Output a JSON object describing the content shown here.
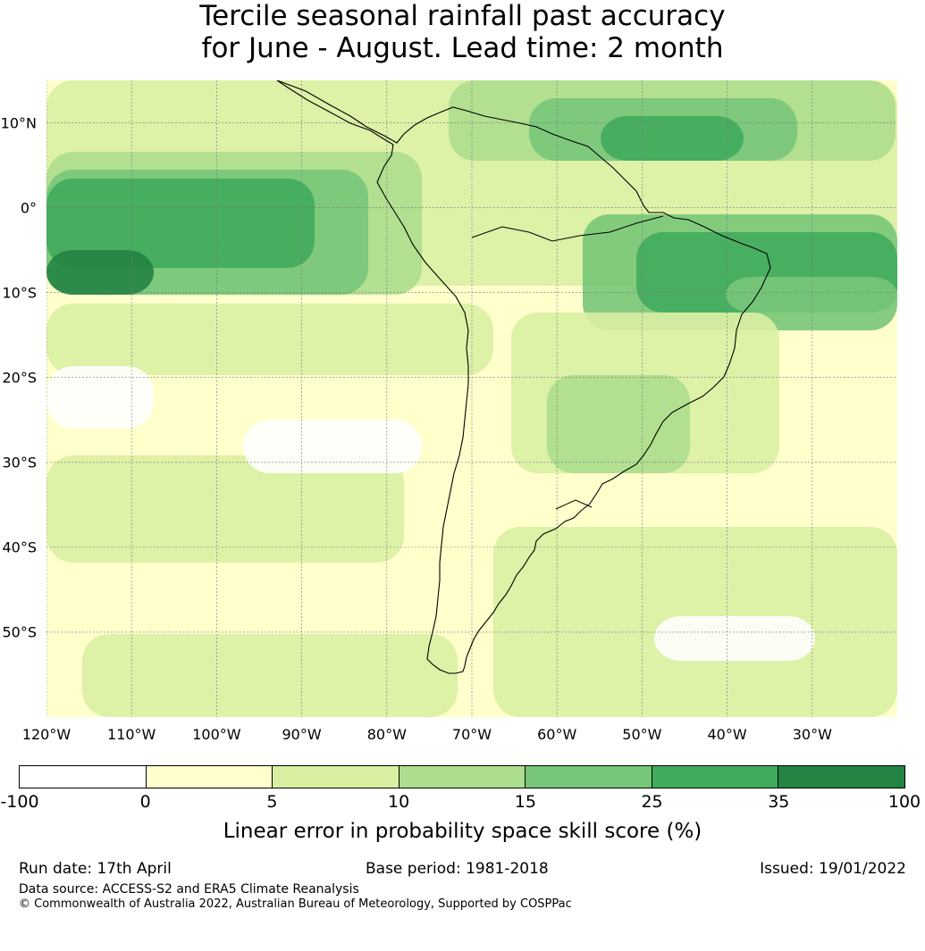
{
  "title": {
    "line1": "Tercile seasonal rainfall past accuracy",
    "line2": "for June - August. Lead time: 2 month"
  },
  "map": {
    "region": "South America",
    "lat_labels": [
      "10°N",
      "0°",
      "10°S",
      "20°S",
      "30°S",
      "40°S",
      "50°S"
    ],
    "lon_labels": [
      "120°W",
      "110°W",
      "100°W",
      "90°W",
      "80°W",
      "70°W",
      "60°W",
      "50°W",
      "40°W",
      "30°W"
    ],
    "lat_range": [
      -60,
      15
    ],
    "lon_range": [
      -120,
      -20
    ],
    "gridlines": true
  },
  "legend": {
    "ticks": [
      "-100",
      "0",
      "5",
      "10",
      "15",
      "25",
      "35",
      "100"
    ],
    "colors": [
      "#ffffff",
      "#ffffcc",
      "#d9f0a3",
      "#addd8e",
      "#78c679",
      "#41ab5d",
      "#238443"
    ],
    "label": "Linear error in probability space skill score (%)"
  },
  "footer": {
    "run_date": "Run date: 17th April",
    "base_period": "Base period: 1981-2018",
    "issued": "Issued: 19/01/2022",
    "data_source": "Data source: ACCESS-S2 and ERA5 Climate Reanalysis",
    "copyright": "© Commonwealth of Australia 2022, Australian Bureau of Meteorology, Supported by COSPPac"
  }
}
